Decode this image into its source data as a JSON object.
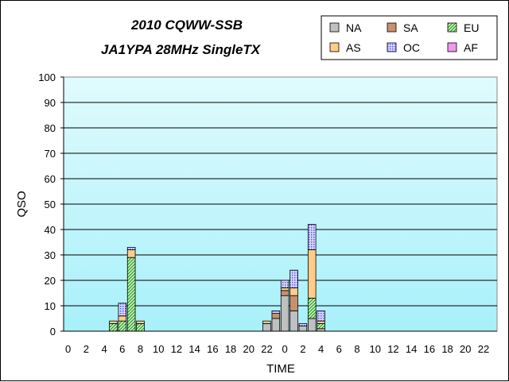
{
  "chart_data": {
    "type": "bar",
    "stacked": true,
    "title": "2010 CQWW-SSB",
    "subtitle": "JA1YPA  28MHz SingleTX",
    "xlabel": "TIME",
    "ylabel": "QSO",
    "ylim": [
      0,
      100
    ],
    "yticks": [
      0,
      10,
      20,
      30,
      40,
      50,
      60,
      70,
      80,
      90,
      100
    ],
    "grid": true,
    "legend_position": "top-right",
    "categories": [
      "0",
      "1",
      "2",
      "3",
      "4",
      "5",
      "6",
      "7",
      "8",
      "9",
      "10",
      "11",
      "12",
      "13",
      "14",
      "15",
      "16",
      "17",
      "18",
      "19",
      "20",
      "21",
      "22",
      "23",
      "0",
      "1",
      "2",
      "3",
      "4",
      "5",
      "6",
      "7",
      "8",
      "9",
      "10",
      "11",
      "12",
      "13",
      "14",
      "15",
      "16",
      "17",
      "18",
      "19",
      "20",
      "21",
      "22",
      "23"
    ],
    "xtick_labels": [
      "0",
      "2",
      "4",
      "6",
      "8",
      "10",
      "12",
      "14",
      "16",
      "18",
      "20",
      "22",
      "0",
      "2",
      "4",
      "6",
      "8",
      "10",
      "12",
      "14",
      "16",
      "18",
      "20",
      "22"
    ],
    "series": [
      {
        "name": "NA",
        "color": "#c0c0c0",
        "pattern": "solid",
        "values": [
          0,
          0,
          0,
          0,
          0,
          0,
          0,
          0,
          0,
          0,
          0,
          0,
          0,
          0,
          0,
          0,
          0,
          0,
          0,
          0,
          0,
          0,
          3,
          5,
          14,
          8,
          2,
          5,
          1,
          0,
          0,
          0,
          0,
          0,
          0,
          0,
          0,
          0,
          0,
          0,
          0,
          0,
          0,
          0,
          0,
          0,
          0,
          0
        ]
      },
      {
        "name": "SA",
        "color": "#c8906e",
        "pattern": "solid",
        "values": [
          0,
          0,
          0,
          0,
          0,
          0,
          0,
          0,
          0,
          0,
          0,
          0,
          0,
          0,
          0,
          0,
          0,
          0,
          0,
          0,
          0,
          0,
          0,
          2,
          2,
          6,
          0,
          0,
          0,
          0,
          0,
          0,
          0,
          0,
          0,
          0,
          0,
          0,
          0,
          0,
          0,
          0,
          0,
          0,
          0,
          0,
          0,
          0
        ]
      },
      {
        "name": "EU",
        "color": "#33cc33",
        "pattern": "hatch",
        "values": [
          0,
          0,
          0,
          0,
          0,
          3,
          4,
          29,
          3,
          0,
          0,
          0,
          0,
          0,
          0,
          0,
          0,
          0,
          0,
          0,
          0,
          0,
          0,
          0,
          0,
          0,
          0,
          8,
          2,
          0,
          0,
          0,
          0,
          0,
          0,
          0,
          0,
          0,
          0,
          0,
          0,
          0,
          0,
          0,
          0,
          0,
          0,
          0
        ]
      },
      {
        "name": "AS",
        "color": "#ffcc88",
        "pattern": "solid",
        "values": [
          0,
          0,
          0,
          0,
          0,
          1,
          2,
          3,
          1,
          0,
          0,
          0,
          0,
          0,
          0,
          0,
          0,
          0,
          0,
          0,
          0,
          0,
          1,
          0,
          1,
          3,
          0,
          19,
          1,
          0,
          0,
          0,
          0,
          0,
          0,
          0,
          0,
          0,
          0,
          0,
          0,
          0,
          0,
          0,
          0,
          0,
          0,
          0
        ]
      },
      {
        "name": "OC",
        "color": "#8888ff",
        "pattern": "dots",
        "values": [
          0,
          0,
          0,
          0,
          0,
          0,
          5,
          1,
          0,
          0,
          0,
          0,
          0,
          0,
          0,
          0,
          0,
          0,
          0,
          0,
          0,
          0,
          0,
          1,
          3,
          7,
          1,
          10,
          4,
          0,
          0,
          0,
          0,
          0,
          0,
          0,
          0,
          0,
          0,
          0,
          0,
          0,
          0,
          0,
          0,
          0,
          0,
          0
        ]
      },
      {
        "name": "AF",
        "color": "#ee99ee",
        "pattern": "solid",
        "values": [
          0,
          0,
          0,
          0,
          0,
          0,
          0,
          0,
          0,
          0,
          0,
          0,
          0,
          0,
          0,
          0,
          0,
          0,
          0,
          0,
          0,
          0,
          0,
          0,
          0,
          0,
          0,
          0,
          0,
          0,
          0,
          0,
          0,
          0,
          0,
          0,
          0,
          0,
          0,
          0,
          0,
          0,
          0,
          0,
          0,
          0,
          0,
          0
        ]
      }
    ],
    "colors": {
      "plot_background_top": "#e0fbfd",
      "plot_background_bottom": "#a8f0fa",
      "gridline": "#000000",
      "plot_border": "#888888"
    }
  }
}
